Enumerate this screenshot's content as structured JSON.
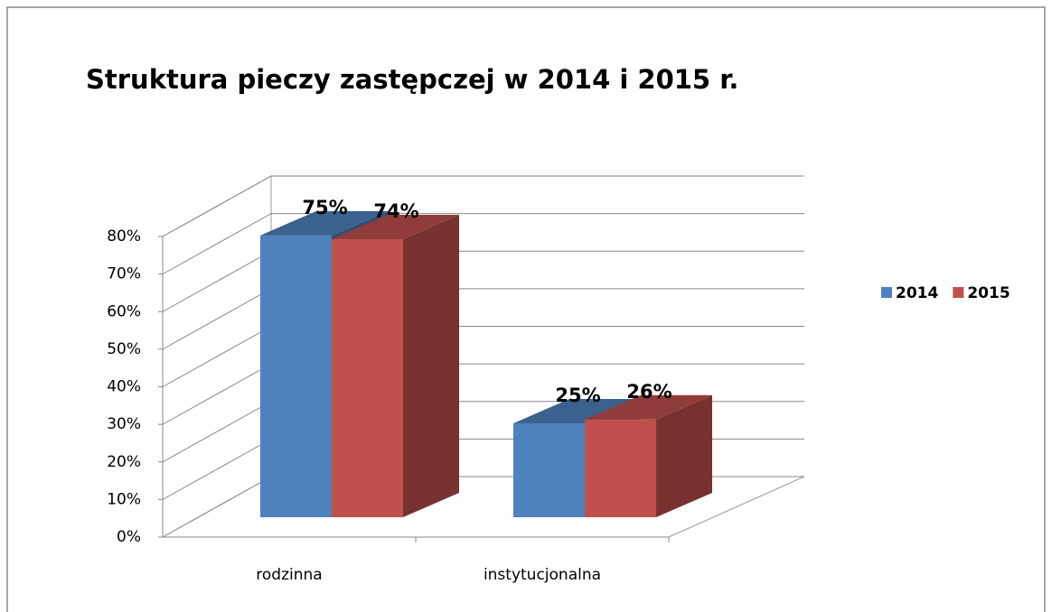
{
  "chart_data": {
    "type": "bar3d",
    "title": "Struktura pieczy zastępczej w 2014 i 2015 r.",
    "categories": [
      "rodzinna",
      "instytucjonalna"
    ],
    "series": [
      {
        "name": "2014",
        "color": "#4f81bd",
        "values": [
          75,
          25
        ],
        "value_labels": [
          "75%",
          "25%"
        ]
      },
      {
        "name": "2015",
        "color": "#c0504d",
        "values": [
          74,
          26
        ],
        "value_labels": [
          "74%",
          "26%"
        ]
      }
    ],
    "ylim": [
      0,
      80
    ],
    "yticks": [
      {
        "value": 0,
        "label": "0%"
      },
      {
        "value": 10,
        "label": "10%"
      },
      {
        "value": 20,
        "label": "20%"
      },
      {
        "value": 30,
        "label": "30%"
      },
      {
        "value": 40,
        "label": "40%"
      },
      {
        "value": 50,
        "label": "50%"
      },
      {
        "value": 60,
        "label": "60%"
      },
      {
        "value": 70,
        "label": "70%"
      },
      {
        "value": 80,
        "label": "80%"
      }
    ],
    "grid": true,
    "legend": "right"
  }
}
